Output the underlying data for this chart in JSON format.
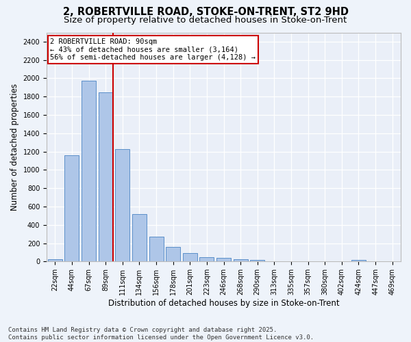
{
  "title_line1": "2, ROBERTVILLE ROAD, STOKE-ON-TRENT, ST2 9HD",
  "title_line2": "Size of property relative to detached houses in Stoke-on-Trent",
  "xlabel": "Distribution of detached houses by size in Stoke-on-Trent",
  "ylabel": "Number of detached properties",
  "categories": [
    "22sqm",
    "44sqm",
    "67sqm",
    "89sqm",
    "111sqm",
    "134sqm",
    "156sqm",
    "178sqm",
    "201sqm",
    "223sqm",
    "246sqm",
    "268sqm",
    "290sqm",
    "313sqm",
    "335sqm",
    "357sqm",
    "380sqm",
    "402sqm",
    "424sqm",
    "447sqm",
    "469sqm"
  ],
  "values": [
    28,
    1160,
    1970,
    1850,
    1230,
    520,
    270,
    160,
    90,
    50,
    40,
    22,
    15,
    0,
    0,
    0,
    0,
    0,
    20,
    0,
    0
  ],
  "bar_color": "#aec6e8",
  "bar_edge_color": "#5b8fc9",
  "bg_color": "#eaeff8",
  "fig_bg_color": "#eef3fa",
  "grid_color": "#ffffff",
  "annotation_text": "2 ROBERTVILLE ROAD: 90sqm\n← 43% of detached houses are smaller (3,164)\n56% of semi-detached houses are larger (4,128) →",
  "vline_color": "#cc0000",
  "box_edge_color": "#cc0000",
  "vline_position": 3.43,
  "ylim": [
    0,
    2500
  ],
  "yticks": [
    0,
    200,
    400,
    600,
    800,
    1000,
    1200,
    1400,
    1600,
    1800,
    2000,
    2200,
    2400
  ],
  "footer_line1": "Contains HM Land Registry data © Crown copyright and database right 2025.",
  "footer_line2": "Contains public sector information licensed under the Open Government Licence v3.0.",
  "title_fontsize": 10.5,
  "subtitle_fontsize": 9.5,
  "axis_label_fontsize": 8.5,
  "tick_fontsize": 7,
  "annotation_fontsize": 7.5,
  "footer_fontsize": 6.5
}
